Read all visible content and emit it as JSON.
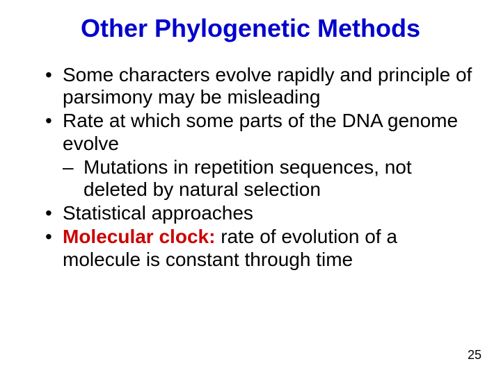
{
  "title": {
    "text": "Other Phylogenetic Methods",
    "color": "#0000cc",
    "fontsize": 36,
    "font_family": "Arial, Helvetica, sans-serif"
  },
  "body": {
    "fontsize": 28,
    "color": "#000000",
    "line_height": 1.15
  },
  "bullets": {
    "b1": "Some characters evolve rapidly and principle of parsimony may be misleading",
    "b2": "Rate at which some parts of the DNA genome evolve",
    "b2_sub1": "Mutations in repetition sequences, not deleted by natural selection",
    "b3": "Statistical approaches",
    "b4_label": "Molecular clock:  ",
    "b4_rest": "rate of evolution of a molecule is constant through time"
  },
  "highlight": {
    "color": "#cc0000",
    "weight": "bold"
  },
  "page_number": {
    "text": "25",
    "fontsize": 18,
    "color": "#000000"
  },
  "background_color": "#ffffff"
}
